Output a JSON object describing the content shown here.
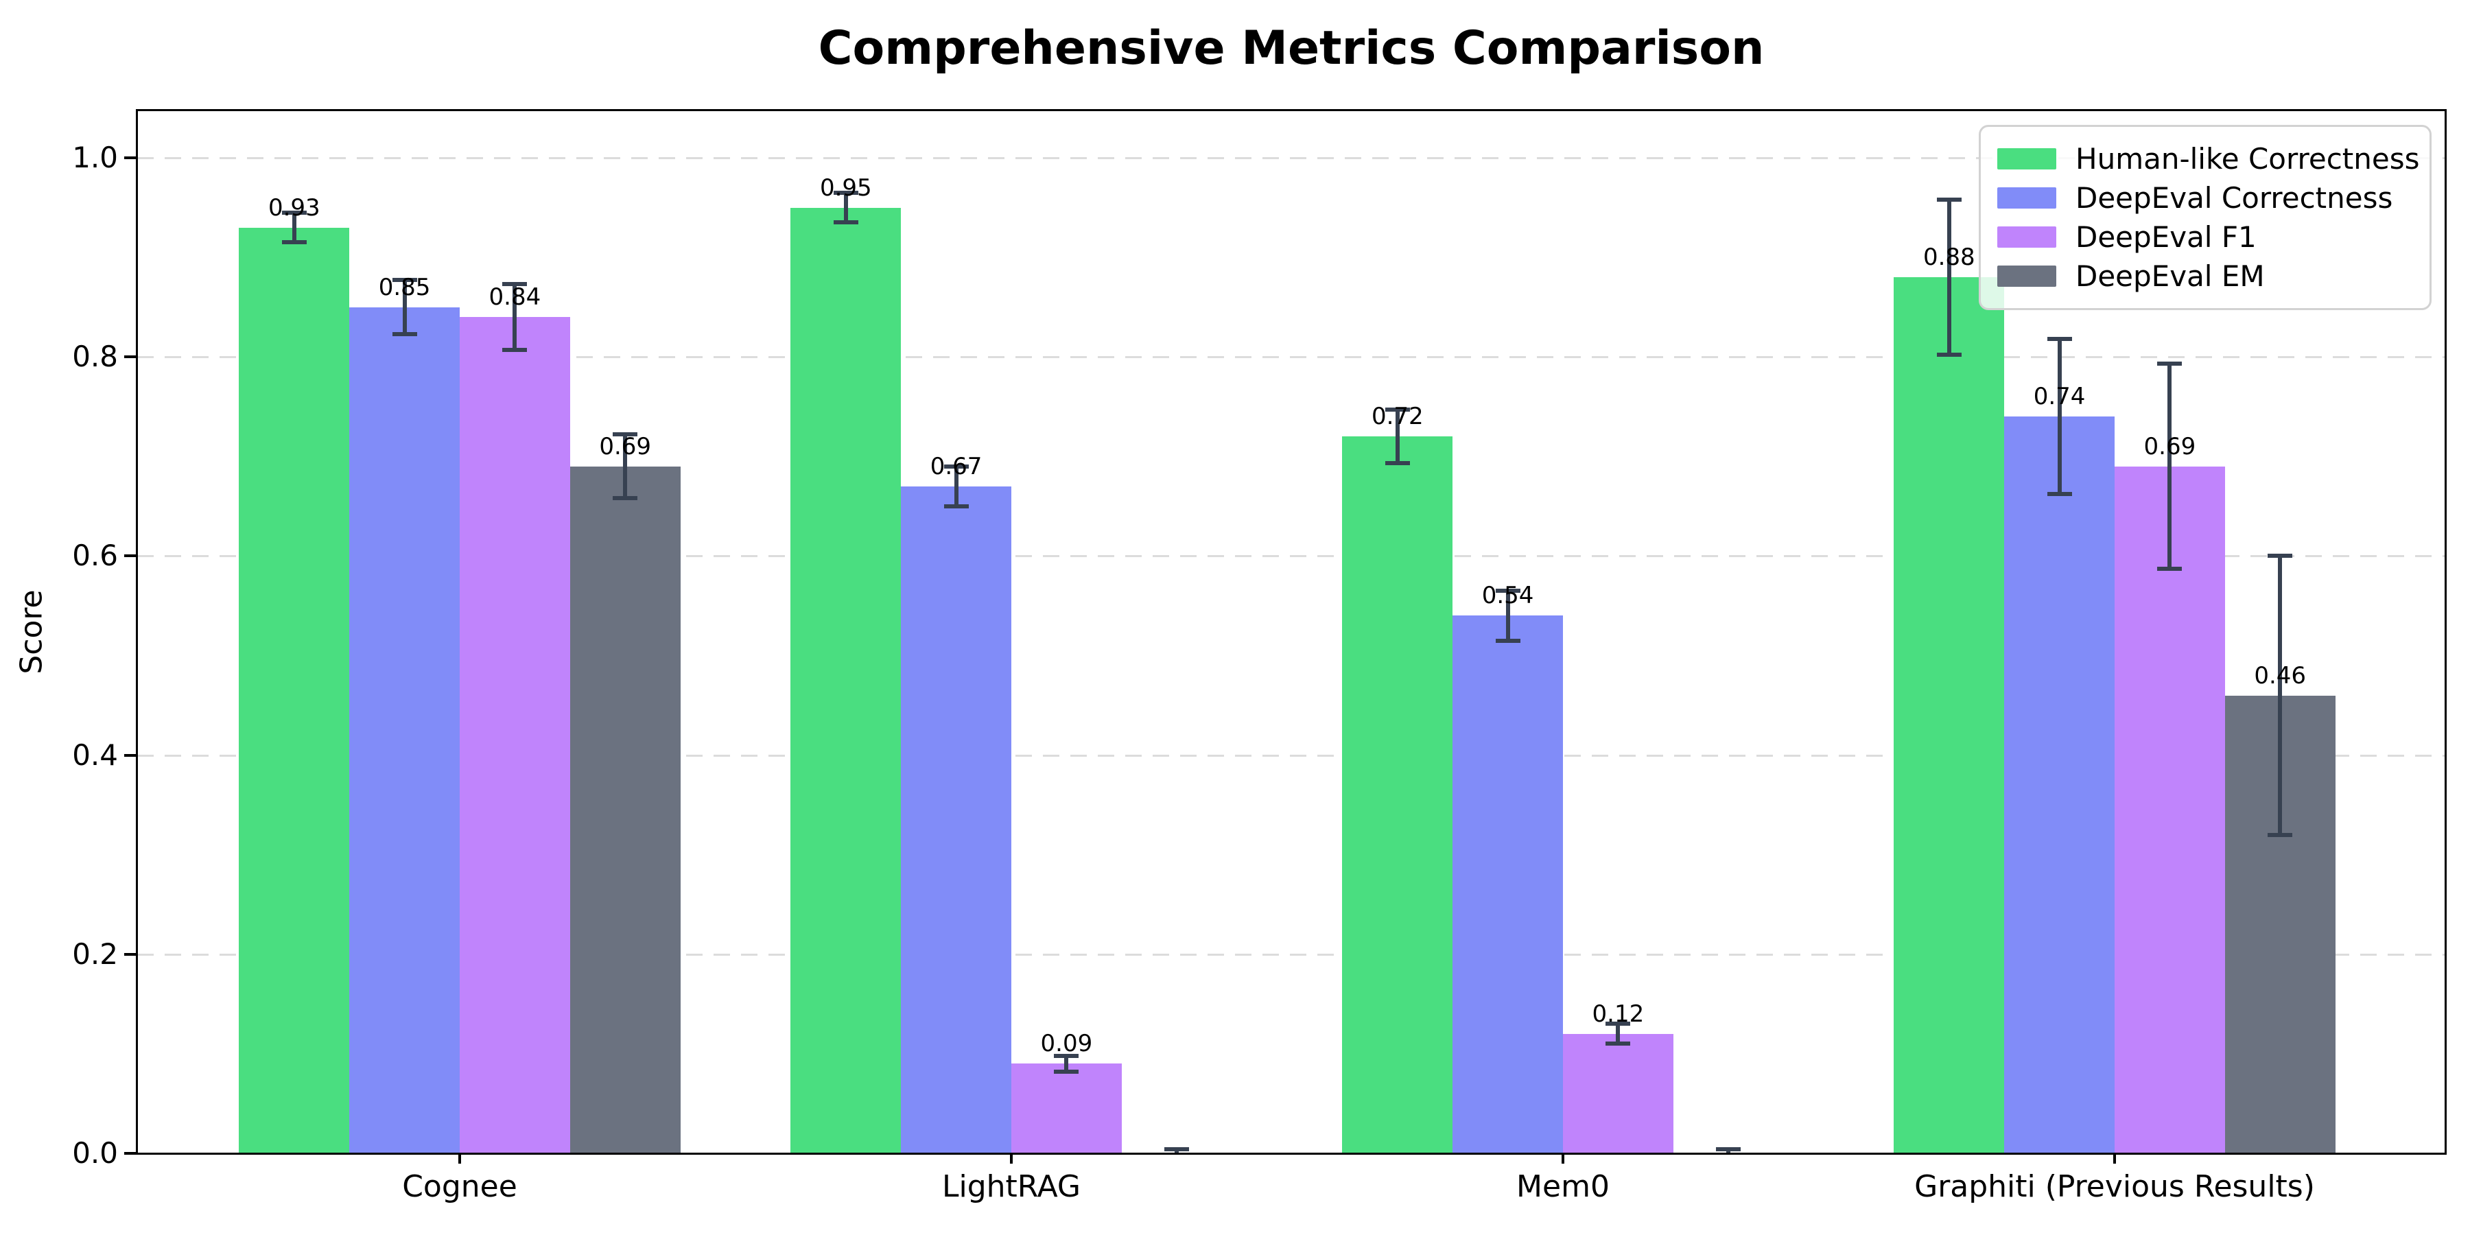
{
  "chart_data": {
    "type": "bar",
    "title": "Comprehensive Metrics Comparison",
    "xlabel": "",
    "ylabel": "Score",
    "ylim": [
      0,
      1.05
    ],
    "grid": "horizontal dashed",
    "legend_position": "upper right",
    "y_axis": {
      "ticks": [
        "0.0",
        "0.2",
        "0.4",
        "0.6",
        "0.8",
        "1.0"
      ]
    },
    "categories": [
      "Cognee",
      "LightRAG",
      "Mem0",
      "Graphiti (Previous Results)"
    ],
    "series": [
      {
        "name": "Human-like Correctness",
        "color": "#4ade80",
        "values": [
          0.93,
          0.95,
          0.72,
          0.88
        ],
        "errors": [
          0.015,
          0.015,
          0.027,
          0.078
        ],
        "labels": [
          "0.93",
          "0.95",
          "0.72",
          "0.88"
        ]
      },
      {
        "name": "DeepEval Correctness",
        "color": "#818cf8",
        "values": [
          0.85,
          0.67,
          0.54,
          0.74
        ],
        "errors": [
          0.027,
          0.02,
          0.025,
          0.078
        ],
        "labels": [
          "0.85",
          "0.67",
          "0.54",
          "0.74"
        ]
      },
      {
        "name": "DeepEval F1",
        "color": "#c084fc",
        "values": [
          0.84,
          0.09,
          0.12,
          0.69
        ],
        "errors": [
          0.033,
          0.008,
          0.01,
          0.103
        ],
        "labels": [
          "0.84",
          "0.09",
          "0.12",
          "0.69"
        ]
      },
      {
        "name": "DeepEval EM",
        "color": "#6b7280",
        "values": [
          0.69,
          0.0,
          0.0,
          0.46
        ],
        "errors": [
          0.032,
          0.004,
          0.004,
          0.14
        ],
        "labels": [
          "0.69",
          "",
          "",
          "0.46"
        ]
      }
    ],
    "error_color": "#374151",
    "grid_color": "#dcdcdc"
  }
}
